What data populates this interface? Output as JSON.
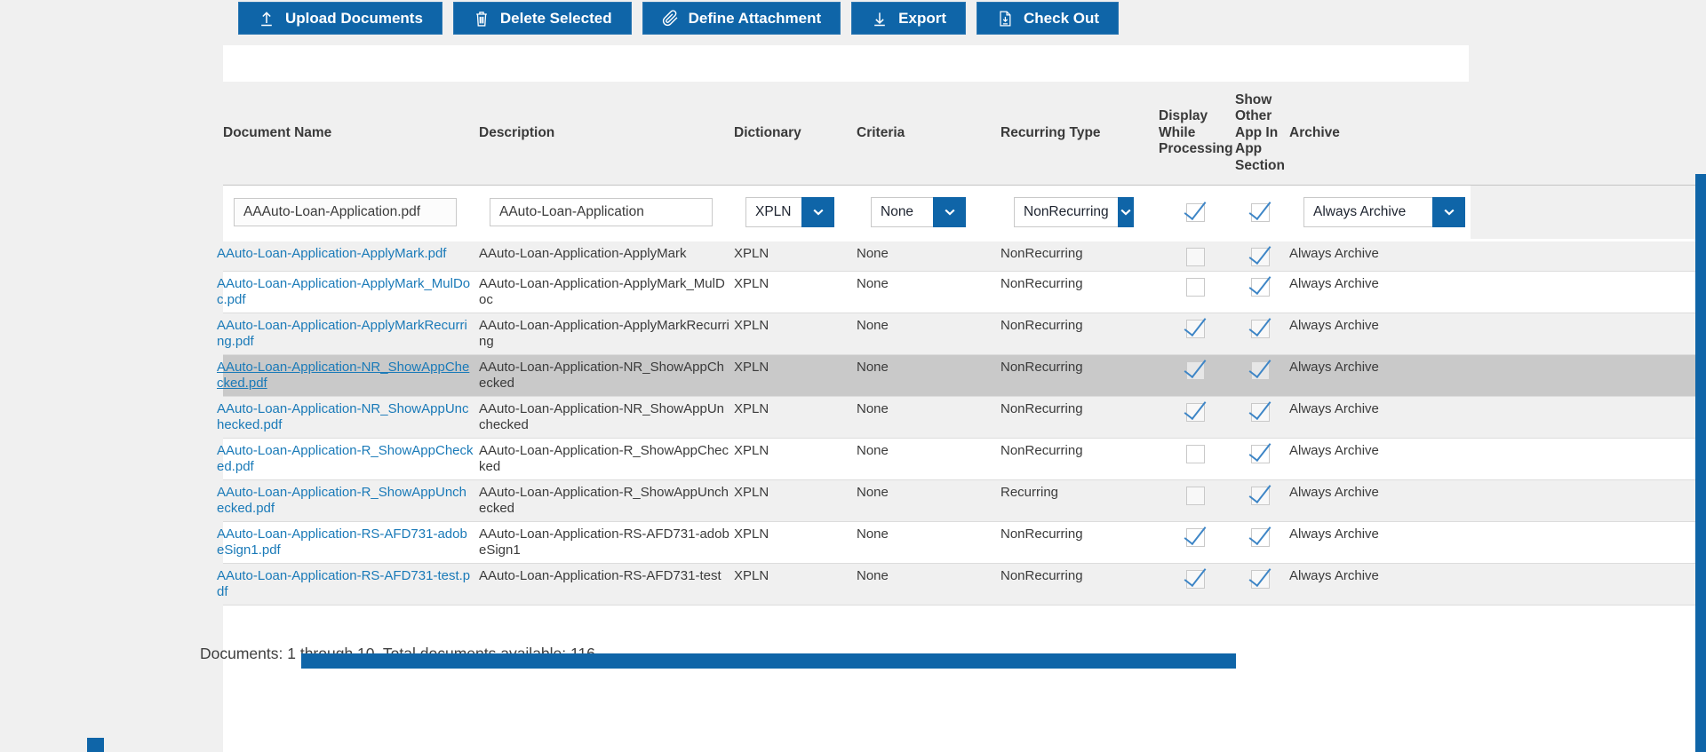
{
  "toolbar": {
    "buttons": [
      {
        "label": "Upload Documents",
        "icon": "upload-icon"
      },
      {
        "label": "Delete Selected",
        "icon": "trash-icon"
      },
      {
        "label": "Define Attachment",
        "icon": "paperclip-icon"
      },
      {
        "label": "Export",
        "icon": "export-icon"
      },
      {
        "label": "Check Out",
        "icon": "checkout-icon"
      }
    ]
  },
  "table": {
    "columns": [
      "Document Name",
      "Description",
      "Dictionary",
      "Criteria",
      "Recurring Type",
      "Display While Processing",
      "Show Other App In App Section",
      "Archive"
    ],
    "edit_row": {
      "document_name": "AAAuto-Loan-Application.pdf",
      "description": "AAuto-Loan-Application",
      "dictionary": "XPLN",
      "criteria": "None",
      "recurring_type": "NonRecurring",
      "display_while_processing_checked": true,
      "show_other_app_checked": true,
      "archive": "Always Archive"
    },
    "rows": [
      {
        "document_name": "AAuto-Loan-Application-ApplyMark.pdf",
        "description": "AAuto-Loan-Application-ApplyMark",
        "dictionary": "XPLN",
        "criteria": "None",
        "recurring_type": "NonRecurring",
        "display_while_processing": false,
        "show_other_app": true,
        "archive": "Always Archive",
        "selected": false
      },
      {
        "document_name": "AAuto-Loan-Application-ApplyMark_MulDoc.pdf",
        "description": "AAuto-Loan-Application-ApplyMark_MulDoc",
        "dictionary": "XPLN",
        "criteria": "None",
        "recurring_type": "NonRecurring",
        "display_while_processing": false,
        "show_other_app": true,
        "archive": "Always Archive",
        "selected": false
      },
      {
        "document_name": "AAuto-Loan-Application-ApplyMarkRecurring.pdf",
        "description": "AAuto-Loan-Application-ApplyMarkRecurring",
        "dictionary": "XPLN",
        "criteria": "None",
        "recurring_type": "NonRecurring",
        "display_while_processing": true,
        "show_other_app": true,
        "archive": "Always Archive",
        "selected": false
      },
      {
        "document_name": "AAuto-Loan-Application-NR_ShowAppChecked.pdf",
        "description": "AAuto-Loan-Application-NR_ShowAppChecked",
        "dictionary": "XPLN",
        "criteria": "None",
        "recurring_type": "NonRecurring",
        "display_while_processing": true,
        "show_other_app": true,
        "archive": "Always Archive",
        "selected": true
      },
      {
        "document_name": "AAuto-Loan-Application-NR_ShowAppUnchecked.pdf",
        "description": "AAuto-Loan-Application-NR_ShowAppUnchecked",
        "dictionary": "XPLN",
        "criteria": "None",
        "recurring_type": "NonRecurring",
        "display_while_processing": true,
        "show_other_app": true,
        "archive": "Always Archive",
        "selected": false
      },
      {
        "document_name": "AAuto-Loan-Application-R_ShowAppChecked.pdf",
        "description": "AAuto-Loan-Application-R_ShowAppChecked",
        "dictionary": "XPLN",
        "criteria": "None",
        "recurring_type": "NonRecurring",
        "display_while_processing": false,
        "show_other_app": true,
        "archive": "Always Archive",
        "selected": false
      },
      {
        "document_name": "AAuto-Loan-Application-R_ShowAppUnchecked.pdf",
        "description": "AAuto-Loan-Application-R_ShowAppUnchecked",
        "dictionary": "XPLN",
        "criteria": "None",
        "recurring_type": "Recurring",
        "display_while_processing": false,
        "show_other_app": true,
        "archive": "Always Archive",
        "selected": false
      },
      {
        "document_name": "AAuto-Loan-Application-RS-AFD731-adobeSign1.pdf",
        "description": "AAuto-Loan-Application-RS-AFD731-adobeSign1",
        "dictionary": "XPLN",
        "criteria": "None",
        "recurring_type": "NonRecurring",
        "display_while_processing": true,
        "show_other_app": true,
        "archive": "Always Archive",
        "selected": false
      },
      {
        "document_name": "AAuto-Loan-Application-RS-AFD731-test.pdf",
        "description": "AAuto-Loan-Application-RS-AFD731-test",
        "dictionary": "XPLN",
        "criteria": "None",
        "recurring_type": "NonRecurring",
        "display_while_processing": true,
        "show_other_app": true,
        "archive": "Always Archive",
        "selected": false
      }
    ]
  },
  "footer": {
    "summary": "Documents: 1 through 10. Total documents available: 116"
  },
  "colors": {
    "primary_blue": "#0f65a8",
    "link_blue": "#1a7ab8",
    "selected_row_gray": "#c9c9c9",
    "row_stripe_gray": "#f0f0f0",
    "checkmark_blue": "#3d85c6"
  }
}
